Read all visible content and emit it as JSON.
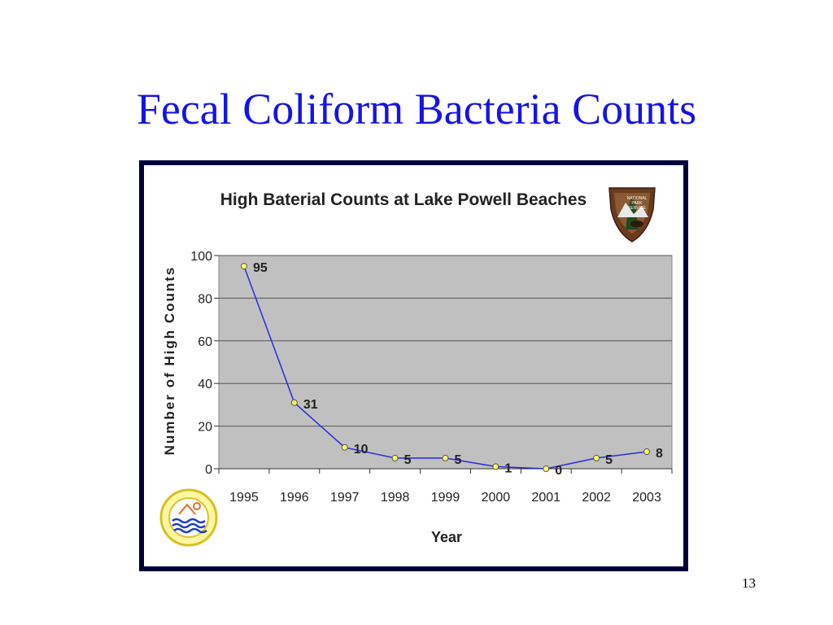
{
  "slide": {
    "title": "Fecal Coliform Bacteria Counts",
    "page_number": "13"
  },
  "chart_data": {
    "type": "line",
    "title": "High Baterial Counts at Lake Powell Beaches",
    "xlabel": "Year",
    "ylabel": "Number of High Counts",
    "categories": [
      "1995",
      "1996",
      "1997",
      "1998",
      "1999",
      "2000",
      "2001",
      "2002",
      "2003"
    ],
    "series": [
      {
        "values": [
          95,
          31,
          10,
          5,
          5,
          1,
          0,
          5,
          8
        ],
        "color": "#2a2ae0"
      }
    ],
    "data_labels": [
      "95",
      "31",
      "10",
      "5",
      "5",
      "1",
      "0",
      "5",
      "8"
    ],
    "ylim": [
      0,
      100
    ],
    "yticks": [
      0,
      20,
      40,
      60,
      80,
      100
    ],
    "grid": true,
    "plot_background": "#c0c0c0",
    "marker_color": "#ffff66"
  },
  "logos": {
    "right": "national-park-service-arrowhead-icon",
    "left": "water-quality-program-seal-icon"
  },
  "colors": {
    "title": "#1414e6",
    "frame": "#00003a"
  }
}
